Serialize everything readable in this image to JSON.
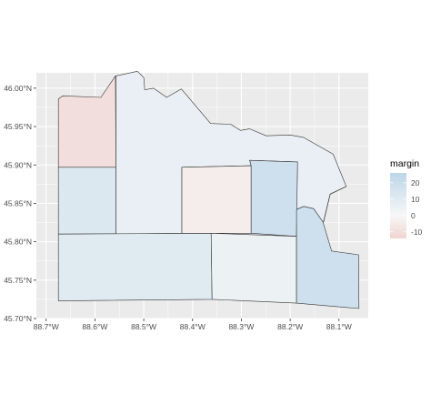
{
  "map": {
    "x_ticks": [
      "88.7°W",
      "88.6°W",
      "88.5°W",
      "88.4°W",
      "88.3°W",
      "88.2°W",
      "88.1°W"
    ],
    "y_ticks": [
      "45.70°N",
      "45.75°N",
      "45.80°N",
      "45.85°N",
      "45.90°N",
      "45.95°N",
      "46.00°N"
    ],
    "x_tick_values": [
      -88.7,
      -88.6,
      -88.5,
      -88.4,
      -88.3,
      -88.2,
      -88.1
    ],
    "y_tick_values": [
      45.7,
      45.75,
      45.8,
      45.85,
      45.9,
      45.95,
      46.0
    ],
    "xlim": [
      -88.72,
      -88.04
    ],
    "ylim": [
      45.7,
      46.02
    ],
    "panel_background": "#ebebeb",
    "gridline_color": "#ffffff",
    "region_border_color": "#333333",
    "regions": [
      {
        "name": "",
        "margin": -10,
        "polygon": [
          [
            -88.675,
            45.986
          ],
          [
            -88.666,
            45.99
          ],
          [
            -88.588,
            45.988
          ],
          [
            -88.558,
            46.016
          ],
          [
            -88.557,
            45.897
          ],
          [
            -88.675,
            45.897
          ]
        ]
      },
      {
        "name": "",
        "margin": 12,
        "polygon": [
          [
            -88.675,
            45.897
          ],
          [
            -88.557,
            45.897
          ],
          [
            -88.557,
            45.81
          ],
          [
            -88.675,
            45.81
          ]
        ]
      },
      {
        "name": "",
        "margin": 6,
        "polygon": [
          [
            -88.557,
            46.016
          ],
          [
            -88.513,
            46.022
          ],
          [
            -88.5,
            46.014
          ],
          [
            -88.498,
            45.998
          ],
          [
            -88.48,
            46.0
          ],
          [
            -88.453,
            45.988
          ],
          [
            -88.423,
            45.999
          ],
          [
            -88.363,
            45.954
          ],
          [
            -88.322,
            45.953
          ],
          [
            -88.302,
            45.945
          ],
          [
            -88.283,
            45.947
          ],
          [
            -88.249,
            45.938
          ],
          [
            -88.2,
            45.939
          ],
          [
            -88.173,
            45.936
          ],
          [
            -88.112,
            45.914
          ],
          [
            -88.085,
            45.872
          ],
          [
            -88.118,
            45.862
          ],
          [
            -88.132,
            45.825
          ],
          [
            -88.152,
            45.843
          ],
          [
            -88.172,
            45.846
          ],
          [
            -88.187,
            45.842
          ],
          [
            -88.185,
            45.904
          ],
          [
            -88.283,
            45.906
          ],
          [
            -88.28,
            45.899
          ],
          [
            -88.422,
            45.897
          ],
          [
            -88.422,
            45.811
          ],
          [
            -88.557,
            45.81
          ]
        ]
      },
      {
        "name": "",
        "margin": -4,
        "polygon": [
          [
            -88.422,
            45.897
          ],
          [
            -88.28,
            45.899
          ],
          [
            -88.28,
            45.811
          ],
          [
            -88.422,
            45.811
          ]
        ]
      },
      {
        "name": "",
        "margin": 18,
        "polygon": [
          [
            -88.283,
            45.906
          ],
          [
            -88.185,
            45.904
          ],
          [
            -88.187,
            45.807
          ],
          [
            -88.28,
            45.811
          ],
          [
            -88.28,
            45.899
          ]
        ]
      },
      {
        "name": "",
        "margin": 10,
        "polygon": [
          [
            -88.675,
            45.81
          ],
          [
            -88.362,
            45.811
          ],
          [
            -88.36,
            45.725
          ],
          [
            -88.675,
            45.723
          ]
        ]
      },
      {
        "name": "",
        "margin": 5,
        "polygon": [
          [
            -88.362,
            45.811
          ],
          [
            -88.187,
            45.807
          ],
          [
            -88.187,
            45.72
          ],
          [
            -88.36,
            45.725
          ]
        ]
      },
      {
        "name": "",
        "margin": 18,
        "polygon": [
          [
            -88.187,
            45.842
          ],
          [
            -88.172,
            45.846
          ],
          [
            -88.152,
            45.843
          ],
          [
            -88.132,
            45.825
          ],
          [
            -88.118,
            45.862
          ],
          [
            -88.085,
            45.872
          ],
          [
            -88.118,
            45.862
          ],
          [
            -88.132,
            45.825
          ],
          [
            -88.132,
            45.824
          ],
          [
            -88.115,
            45.788
          ],
          [
            -88.06,
            45.783
          ],
          [
            -88.059,
            45.713
          ],
          [
            -88.187,
            45.72
          ]
        ]
      }
    ]
  },
  "legend": {
    "title": "margin",
    "labels": [
      "20",
      "10",
      "0",
      "-10"
    ],
    "values": [
      20,
      10,
      0,
      -10
    ],
    "range": [
      -14,
      26
    ],
    "color_low": "#f0d4d1",
    "color_mid": "#f7f7f7",
    "color_high": "#bcd6e8"
  }
}
